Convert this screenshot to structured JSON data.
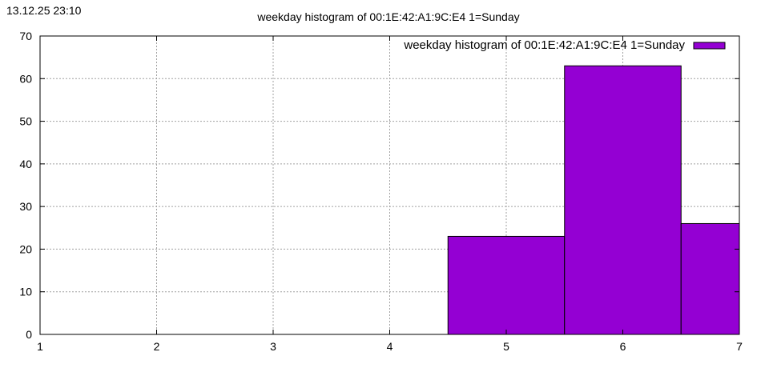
{
  "timestamp": "13.12.25 23:10",
  "colors": {
    "bar": "#9400d3",
    "bar_outline": "#000000"
  },
  "chart_data": {
    "type": "bar",
    "title": "weekday histogram of 00:1E:42:A1:9C:E4 1=Sunday",
    "xlabel": "",
    "ylabel": "",
    "xlim": [
      1,
      7
    ],
    "ylim": [
      0,
      70
    ],
    "x_ticks": [
      1,
      2,
      3,
      4,
      5,
      6,
      7
    ],
    "y_ticks": [
      0,
      10,
      20,
      30,
      40,
      50,
      60,
      70
    ],
    "grid": true,
    "legend_position": "top-right",
    "categories": [
      5,
      6,
      7
    ],
    "bar_width": 1,
    "series": [
      {
        "name": "weekday histogram of 00:1E:42:A1:9C:E4 1=Sunday",
        "values": [
          23,
          63,
          26
        ]
      }
    ]
  }
}
